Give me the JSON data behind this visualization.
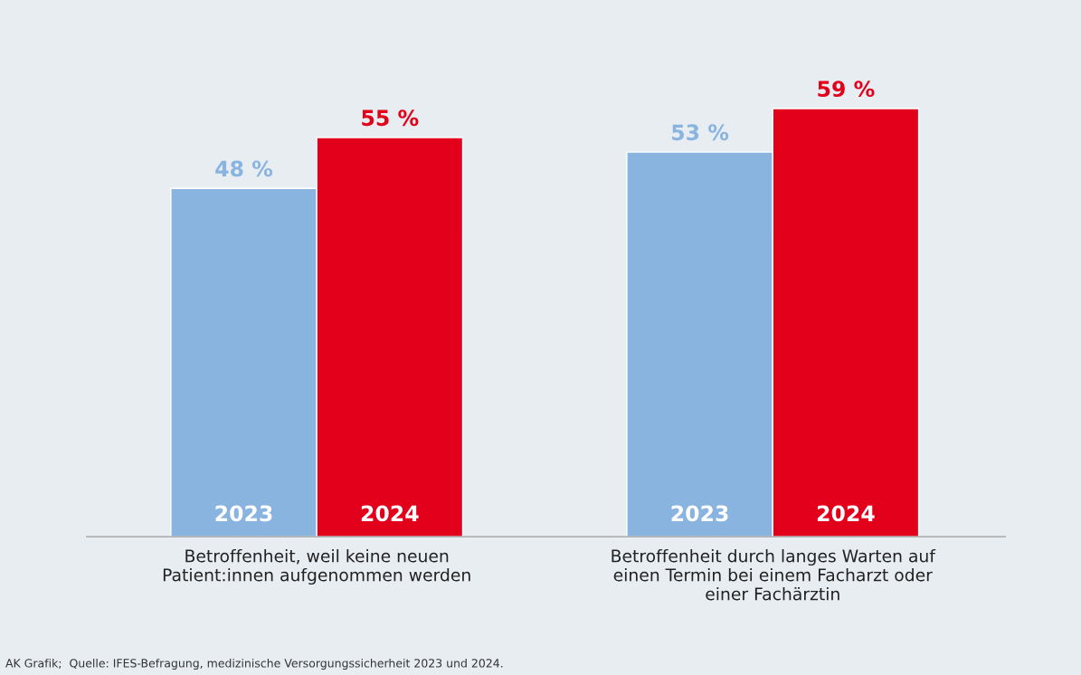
{
  "chart_data": {
    "type": "bar",
    "categories": [
      "Betroffenheit, weil keine neuen\nPatient:innen aufgenommen werden",
      "Betroffenheit durch langes Warten auf\neinen Termin bei einem Facharzt oder\neiner Fachärztin"
    ],
    "series": [
      {
        "name": "2023",
        "color": "#8ab4e0",
        "values": [
          48,
          53
        ],
        "value_labels": [
          "48 %",
          "53 %"
        ]
      },
      {
        "name": "2024",
        "color": "#e2001a",
        "values": [
          55,
          59
        ],
        "value_labels": [
          "55 %",
          "59 %"
        ]
      }
    ],
    "annotations": [
      "AK Grafik;  Quelle: IFES-Befragung, medizinische Versorgungssicherheit 2023 und 2024."
    ]
  }
}
